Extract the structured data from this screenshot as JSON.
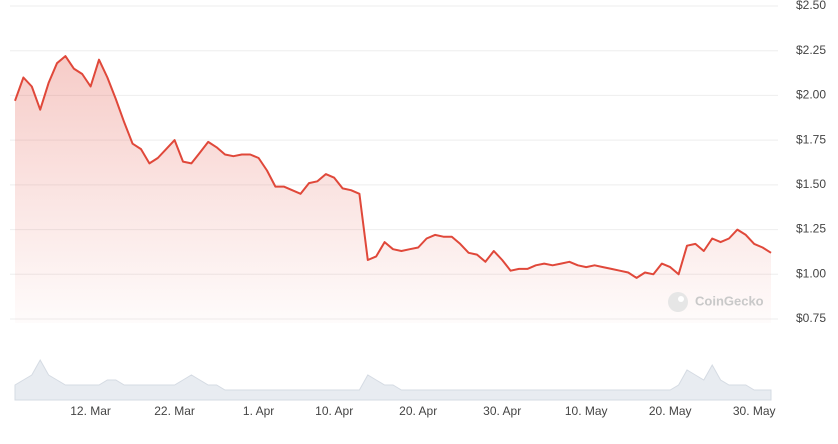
{
  "chart_data": {
    "type": "line",
    "color": "#e0483a",
    "grid": true,
    "watermark": "CoinGecko",
    "categories": [
      null,
      null,
      null,
      null,
      null,
      null,
      null,
      null,
      null,
      "12. Mar",
      null,
      null,
      null,
      null,
      null,
      null,
      null,
      null,
      null,
      "22. Mar",
      null,
      null,
      null,
      null,
      null,
      null,
      null,
      null,
      null,
      "1. Apr",
      null,
      null,
      null,
      null,
      null,
      null,
      null,
      null,
      "10. Apr",
      null,
      null,
      null,
      null,
      null,
      null,
      null,
      null,
      null,
      "20. Apr",
      null,
      null,
      null,
      null,
      null,
      null,
      null,
      null,
      null,
      "30. Apr",
      null,
      null,
      null,
      null,
      null,
      null,
      null,
      null,
      null,
      "10. May",
      null,
      null,
      null,
      null,
      null,
      null,
      null,
      null,
      null,
      "20. May",
      null,
      null,
      null,
      null,
      null,
      null,
      null,
      null,
      null,
      "30. May",
      null,
      null
    ],
    "values": [
      1.97,
      2.1,
      2.05,
      1.92,
      2.07,
      2.18,
      2.22,
      2.15,
      2.12,
      2.05,
      2.2,
      2.1,
      1.98,
      1.85,
      1.73,
      1.7,
      1.62,
      1.65,
      1.7,
      1.75,
      1.63,
      1.62,
      1.68,
      1.74,
      1.71,
      1.67,
      1.66,
      1.67,
      1.67,
      1.65,
      1.58,
      1.49,
      1.49,
      1.47,
      1.45,
      1.51,
      1.52,
      1.56,
      1.54,
      1.48,
      1.47,
      1.45,
      1.08,
      1.1,
      1.18,
      1.14,
      1.13,
      1.14,
      1.15,
      1.2,
      1.22,
      1.21,
      1.21,
      1.17,
      1.12,
      1.11,
      1.07,
      1.13,
      1.08,
      1.02,
      1.03,
      1.03,
      1.05,
      1.06,
      1.05,
      1.06,
      1.07,
      1.05,
      1.04,
      1.05,
      1.04,
      1.03,
      1.02,
      1.01,
      0.98,
      1.01,
      1.0,
      1.06,
      1.04,
      1.0,
      1.16,
      1.17,
      1.13,
      1.2,
      1.18,
      1.2,
      1.25,
      1.22,
      1.17,
      1.15,
      1.12
    ],
    "volume": [
      3,
      4,
      5,
      8,
      5,
      4,
      3,
      3,
      3,
      3,
      3,
      4,
      4,
      3,
      3,
      3,
      3,
      3,
      3,
      3,
      4,
      5,
      4,
      3,
      3,
      2,
      2,
      2,
      2,
      2,
      2,
      2,
      2,
      2,
      2,
      2,
      2,
      2,
      2,
      2,
      2,
      2,
      5,
      4,
      3,
      3,
      2,
      2,
      2,
      2,
      2,
      2,
      2,
      2,
      2,
      2,
      2,
      2,
      2,
      2,
      2,
      2,
      2,
      2,
      2,
      2,
      2,
      2,
      2,
      2,
      2,
      2,
      2,
      2,
      2,
      2,
      2,
      2,
      2,
      3,
      6,
      5,
      4,
      7,
      4,
      3,
      3,
      3,
      2,
      2,
      2
    ],
    "ylim": [
      0.75,
      2.5
    ],
    "yticks": [
      {
        "value": 0.75,
        "label": "$0.75"
      },
      {
        "value": 1.0,
        "label": "$1.00"
      },
      {
        "value": 1.25,
        "label": "$1.25"
      },
      {
        "value": 1.5,
        "label": "$1.50"
      },
      {
        "value": 1.75,
        "label": "$1.75"
      },
      {
        "value": 2.0,
        "label": "$2.00"
      },
      {
        "value": 2.25,
        "label": "$2.25"
      },
      {
        "value": 2.5,
        "label": "$2.50"
      }
    ]
  }
}
